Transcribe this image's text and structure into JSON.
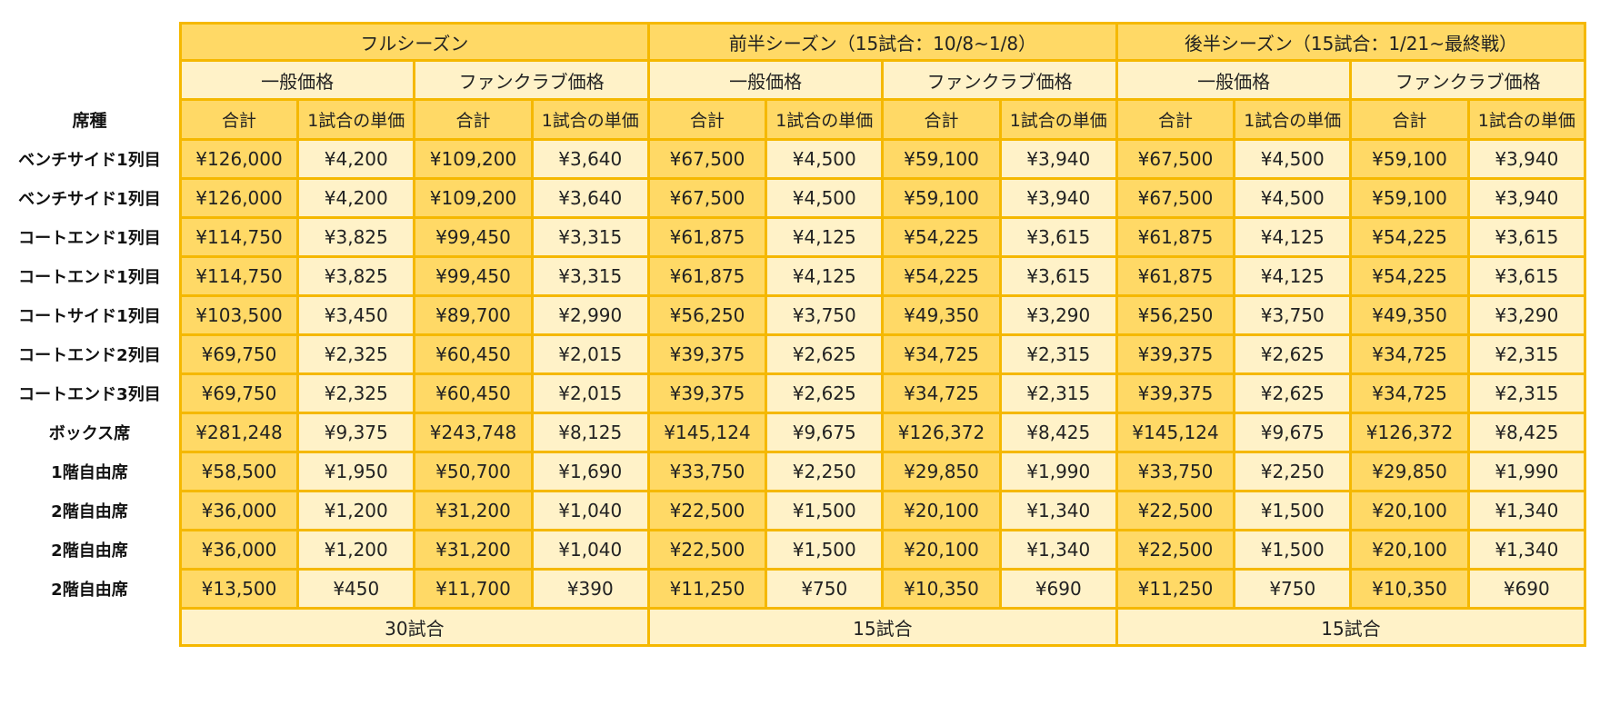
{
  "seasons": [
    {
      "title": "フルシーズン",
      "footer": "30試合"
    },
    {
      "title": "前半シーズン（15試合：10/8~1/8）",
      "footer": "15試合"
    },
    {
      "title": "後半シーズン（15試合：1/21~最終戦）",
      "footer": "15試合"
    }
  ],
  "price_types": [
    "一般価格",
    "ファンクラブ価格"
  ],
  "sub_headers": {
    "total": "合計",
    "unit": "1試合の単価"
  },
  "seat_header": "席種",
  "rows": [
    {
      "seat": "ベンチサイド1列目",
      "cells": [
        "¥126,000",
        "¥4,200",
        "¥109,200",
        "¥3,640",
        "¥67,500",
        "¥4,500",
        "¥59,100",
        "¥3,940",
        "¥67,500",
        "¥4,500",
        "¥59,100",
        "¥3,940"
      ]
    },
    {
      "seat": "ベンチサイド1列目",
      "cells": [
        "¥126,000",
        "¥4,200",
        "¥109,200",
        "¥3,640",
        "¥67,500",
        "¥4,500",
        "¥59,100",
        "¥3,940",
        "¥67,500",
        "¥4,500",
        "¥59,100",
        "¥3,940"
      ]
    },
    {
      "seat": "コートエンド1列目",
      "cells": [
        "¥114,750",
        "¥3,825",
        "¥99,450",
        "¥3,315",
        "¥61,875",
        "¥4,125",
        "¥54,225",
        "¥3,615",
        "¥61,875",
        "¥4,125",
        "¥54,225",
        "¥3,615"
      ]
    },
    {
      "seat": "コートエンド1列目",
      "cells": [
        "¥114,750",
        "¥3,825",
        "¥99,450",
        "¥3,315",
        "¥61,875",
        "¥4,125",
        "¥54,225",
        "¥3,615",
        "¥61,875",
        "¥4,125",
        "¥54,225",
        "¥3,615"
      ]
    },
    {
      "seat": "コートサイド1列目",
      "cells": [
        "¥103,500",
        "¥3,450",
        "¥89,700",
        "¥2,990",
        "¥56,250",
        "¥3,750",
        "¥49,350",
        "¥3,290",
        "¥56,250",
        "¥3,750",
        "¥49,350",
        "¥3,290"
      ]
    },
    {
      "seat": "コートエンド2列目",
      "cells": [
        "¥69,750",
        "¥2,325",
        "¥60,450",
        "¥2,015",
        "¥39,375",
        "¥2,625",
        "¥34,725",
        "¥2,315",
        "¥39,375",
        "¥2,625",
        "¥34,725",
        "¥2,315"
      ]
    },
    {
      "seat": "コートエンド3列目",
      "cells": [
        "¥69,750",
        "¥2,325",
        "¥60,450",
        "¥2,015",
        "¥39,375",
        "¥2,625",
        "¥34,725",
        "¥2,315",
        "¥39,375",
        "¥2,625",
        "¥34,725",
        "¥2,315"
      ]
    },
    {
      "seat": "ボックス席",
      "cells": [
        "¥281,248",
        "¥9,375",
        "¥243,748",
        "¥8,125",
        "¥145,124",
        "¥9,675",
        "¥126,372",
        "¥8,425",
        "¥145,124",
        "¥9,675",
        "¥126,372",
        "¥8,425"
      ]
    },
    {
      "seat": "1階自由席",
      "cells": [
        "¥58,500",
        "¥1,950",
        "¥50,700",
        "¥1,690",
        "¥33,750",
        "¥2,250",
        "¥29,850",
        "¥1,990",
        "¥33,750",
        "¥2,250",
        "¥29,850",
        "¥1,990"
      ]
    },
    {
      "seat": "2階自由席",
      "cells": [
        "¥36,000",
        "¥1,200",
        "¥31,200",
        "¥1,040",
        "¥22,500",
        "¥1,500",
        "¥20,100",
        "¥1,340",
        "¥22,500",
        "¥1,500",
        "¥20,100",
        "¥1,340"
      ]
    },
    {
      "seat": "2階自由席",
      "cells": [
        "¥36,000",
        "¥1,200",
        "¥31,200",
        "¥1,040",
        "¥22,500",
        "¥1,500",
        "¥20,100",
        "¥1,340",
        "¥22,500",
        "¥1,500",
        "¥20,100",
        "¥1,340"
      ]
    },
    {
      "seat": "2階自由席",
      "cells": [
        "¥13,500",
        "¥450",
        "¥11,700",
        "¥390",
        "¥11,250",
        "¥750",
        "¥10,350",
        "¥690",
        "¥11,250",
        "¥750",
        "¥10,350",
        "¥690"
      ]
    }
  ]
}
